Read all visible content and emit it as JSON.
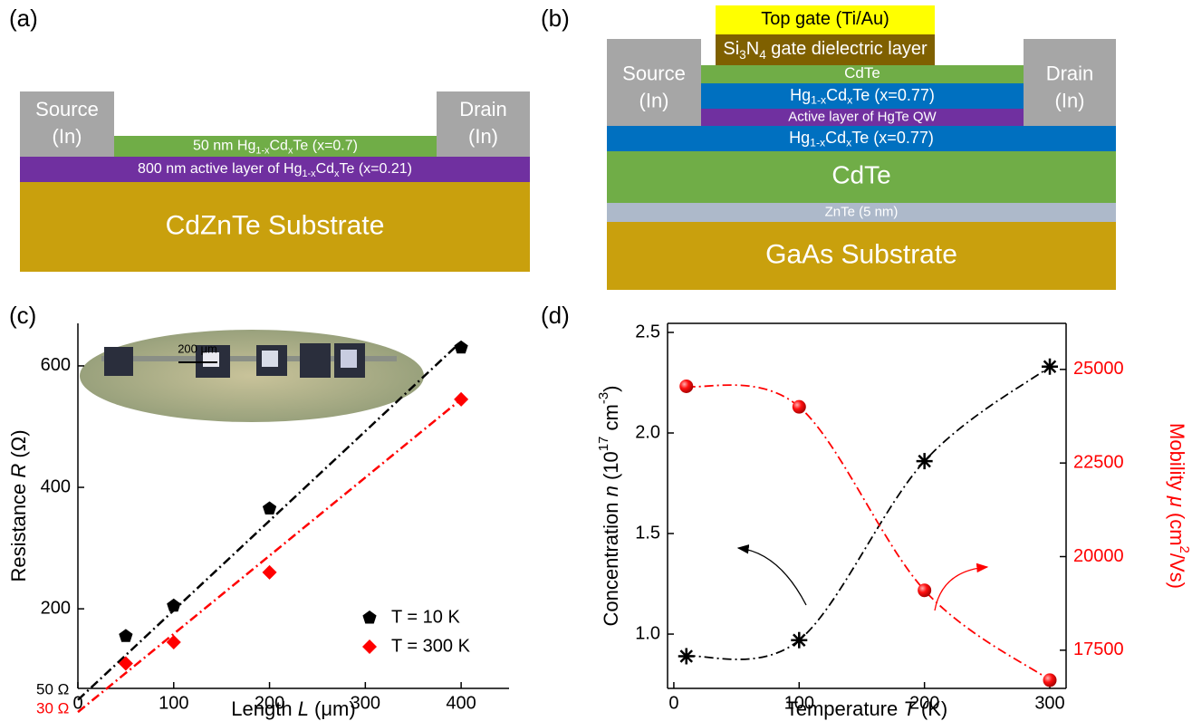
{
  "panel_labels": [
    "(a)",
    "(b)",
    "(c)",
    "(d)"
  ],
  "diagrams": [
    {
      "blocks": [
        {
          "color": "#a6a6a6",
          "lines": [
            [
              "Source"
            ],
            [
              "(In)"
            ]
          ]
        },
        {
          "color": "#a6a6a6",
          "lines": [
            [
              "Drain"
            ],
            [
              "(In)"
            ]
          ]
        },
        {
          "color": "#70ad47",
          "lines": [
            [
              "50 nm Hg",
              {
                "sub": "1-x"
              },
              "Cd",
              {
                "sub": "x"
              },
              "Te  (x=0.7)"
            ]
          ]
        },
        {
          "color": "#7030a0",
          "lines": [
            [
              "800 nm active layer of Hg",
              {
                "sub": "1-x"
              },
              "Cd",
              {
                "sub": "x"
              },
              "Te  (x=0.21)"
            ]
          ]
        },
        {
          "color": "#c9a00d",
          "lines": [
            [
              "CdZnTe Substrate"
            ]
          ]
        }
      ]
    },
    {
      "blocks": [
        {
          "color": "#ffff00",
          "text_color": "#000000",
          "lines": [
            [
              "Top gate (Ti/Au)"
            ]
          ]
        },
        {
          "color": "#7f6000",
          "lines": [
            [
              "Si",
              {
                "sub": "3"
              },
              "N",
              {
                "sub": "4"
              },
              " gate dielectric layer"
            ]
          ]
        },
        {
          "color": "#a6a6a6",
          "lines": [
            [
              "Source"
            ],
            [
              "(In)"
            ]
          ]
        },
        {
          "color": "#a6a6a6",
          "lines": [
            [
              "Drain"
            ],
            [
              "(In)"
            ]
          ]
        },
        {
          "color": "#70ad47",
          "lines": [
            [
              "CdTe"
            ]
          ]
        },
        {
          "color": "#0070c0",
          "lines": [
            [
              "Hg",
              {
                "sub": "1-x"
              },
              "Cd",
              {
                "sub": "x"
              },
              "Te (x=0.77)"
            ]
          ]
        },
        {
          "color": "#7030a0",
          "lines": [
            [
              "Active layer of HgTe QW"
            ]
          ]
        },
        {
          "color": "#0070c0",
          "lines": [
            [
              "Hg",
              {
                "sub": "1-x"
              },
              "Cd",
              {
                "sub": "x"
              },
              "Te (x=0.77)"
            ]
          ]
        },
        {
          "color": "#70ad47",
          "lines": [
            [
              "CdTe"
            ]
          ]
        },
        {
          "color": "#adb9ca",
          "lines": [
            [
              "ZnTe (5 nm)"
            ]
          ]
        },
        {
          "color": "#c9a00d",
          "lines": [
            [
              "GaAs Substrate"
            ]
          ]
        }
      ]
    }
  ],
  "chart_data": [
    {
      "type": "scatter",
      "x_label": [
        "Length ",
        {
          "i": "L"
        },
        " (μm)"
      ],
      "y_label": [
        "Resistance ",
        {
          "i": "R"
        },
        " (Ω)"
      ],
      "xlim": [
        0,
        450
      ],
      "xticks": [
        0,
        100,
        200,
        300,
        400
      ],
      "ylim": [
        69,
        670
      ],
      "yticks": [
        200,
        400,
        600
      ],
      "x": [
        50,
        100,
        200,
        400
      ],
      "legend": "lower right",
      "series": [
        {
          "name": "T = 10 K",
          "color": "#000000",
          "marker": "pentagon",
          "values": [
            155,
            205,
            365,
            630
          ],
          "fit": {
            "x": [
              0,
              400
            ],
            "y": [
              50,
              640
            ]
          }
        },
        {
          "name": "T = 300 K",
          "color": "#ff0000",
          "marker": "diamond",
          "values": [
            110,
            145,
            260,
            545
          ],
          "fit": {
            "x": [
              0,
              400
            ],
            "y": [
              30,
              545
            ]
          }
        }
      ],
      "annotations": [
        {
          "text": "50 Ω",
          "color": "#000000"
        },
        {
          "text": "30 Ω",
          "color": "#ff0000"
        }
      ],
      "inset_scale_label": "200 μm"
    },
    {
      "type": "line",
      "x_label": [
        "Temperature ",
        {
          "i": "T"
        },
        " (K)"
      ],
      "y_label": [
        "Concentration ",
        {
          "i": "n"
        },
        " (10",
        {
          "sup": "17"
        },
        " cm",
        {
          "sup": "-3"
        },
        ")"
      ],
      "y2_label": [
        "Mobility ",
        {
          "i": "μ"
        },
        " (cm",
        {
          "sup": "2"
        },
        "/Vs)"
      ],
      "y2_color": "#ff0000",
      "xlim": [
        -5,
        313
      ],
      "xticks": [
        0,
        100,
        200,
        300
      ],
      "ylim": [
        0.73,
        2.545
      ],
      "yticks": [
        {
          "value": 1,
          "label": "1.0"
        },
        1.5,
        {
          "value": 2,
          "label": "2.0"
        },
        2.5
      ],
      "y2lim": [
        16480,
        26230
      ],
      "y2ticks": [
        17500,
        20000,
        22500,
        25000
      ],
      "x": [
        10,
        100,
        200,
        300
      ],
      "series": [
        {
          "color": "#000000",
          "marker": "asterisk",
          "values": [
            0.89,
            0.97,
            1.86,
            2.33
          ]
        },
        {
          "color": "#ff0000",
          "marker": "sphere",
          "axis": "y2",
          "values": [
            24550,
            24000,
            19100,
            16700
          ]
        }
      ]
    }
  ]
}
